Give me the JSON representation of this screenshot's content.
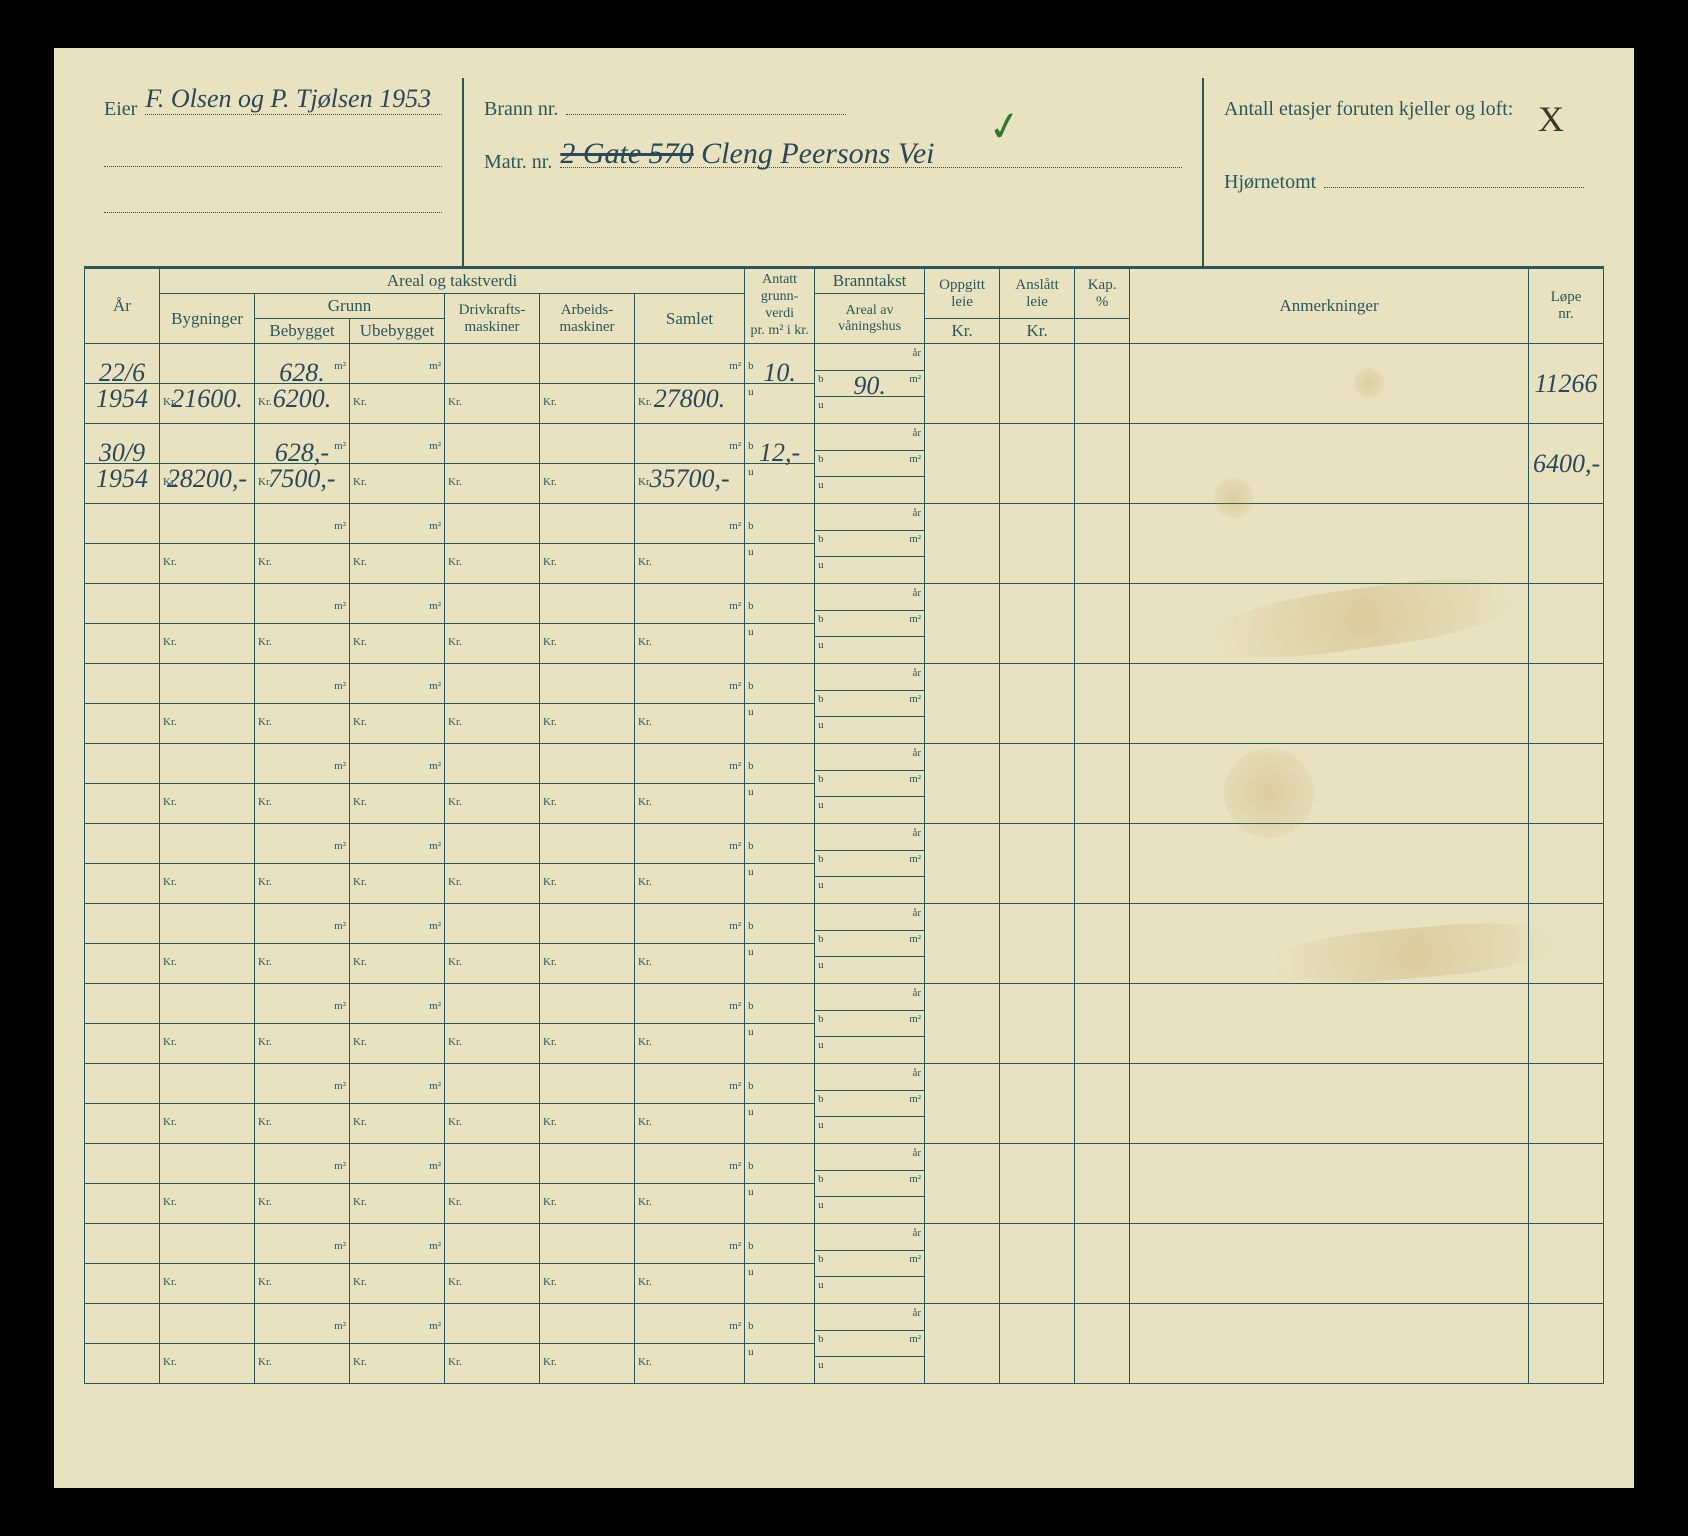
{
  "header": {
    "eier_label": "Eier",
    "eier_value": "F. Olsen og P. Tjølsen 1953",
    "brann_label": "Brann nr.",
    "brann_value": "",
    "matr_label": "Matr. nr.",
    "matr_value_struck": "2 Gate 570",
    "matr_value_rest": "Cleng Peersons Vei",
    "etasjer_label": "Antall etasjer foruten kjeller og loft:",
    "etasjer_value": "X",
    "hjornetomt_label": "Hjørnetomt",
    "hjornetomt_value": ""
  },
  "colgroups": {
    "areal": "Areal og takstverdi",
    "ar": "År",
    "bygninger": "Bygninger",
    "grunn": "Grunn",
    "bebygget": "Bebygget",
    "ubebygget": "Ubebygget",
    "drivkraft": "Drivkrafts-\nmaskiner",
    "arbeids": "Arbeids-\nmaskiner",
    "samlet": "Samlet",
    "antatt": "Antatt grunn-verdi pr. m² i kr.",
    "branntakst": "Branntakst",
    "areal_av": "Areal av våningshus",
    "oppgitt": "Oppgitt leie Kr.",
    "anslott": "Anslått leie Kr.",
    "kap": "Kap. %",
    "anmerk": "Anmerkninger",
    "lope": "Løpe nr."
  },
  "units": {
    "m2": "m²",
    "kr": "Kr.",
    "ar_u": "år",
    "b": "b",
    "u": "u"
  },
  "rows": [
    {
      "ar_top": "22/6",
      "ar_bot": "1954",
      "byg_kr": "21600.",
      "beb_m2": "628.",
      "beb_kr": "6200.",
      "ube_m2": "",
      "ube_kr": "",
      "driv_kr": "",
      "arb_kr": "",
      "sam_m2": "",
      "sam_kr": "27800.",
      "grv_b": "10.",
      "grv_u": "",
      "brn_ar": "",
      "brn_m2": "90.",
      "brn_u": "",
      "opp": "",
      "ans": "",
      "kap": "",
      "anm": "",
      "lope": "11266"
    },
    {
      "ar_top": "30/9",
      "ar_bot": "1954",
      "byg_kr": "28200,-",
      "beb_m2": "628,-",
      "beb_kr": "7500,-",
      "ube_m2": "",
      "ube_kr": "",
      "driv_kr": "",
      "arb_kr": "",
      "sam_m2": "",
      "sam_kr": "35700,-",
      "grv_b": "12,-",
      "grv_u": "",
      "brn_ar": "",
      "brn_m2": "",
      "brn_u": "",
      "opp": "",
      "ans": "",
      "kap": "",
      "anm": "",
      "lope": "6400,-"
    }
  ],
  "empty_rows": 11,
  "colors": {
    "paper": "#e8e2c0",
    "ink": "#2a5858",
    "handwriting": "#2a4858",
    "pencil": "#3a3a2a"
  }
}
